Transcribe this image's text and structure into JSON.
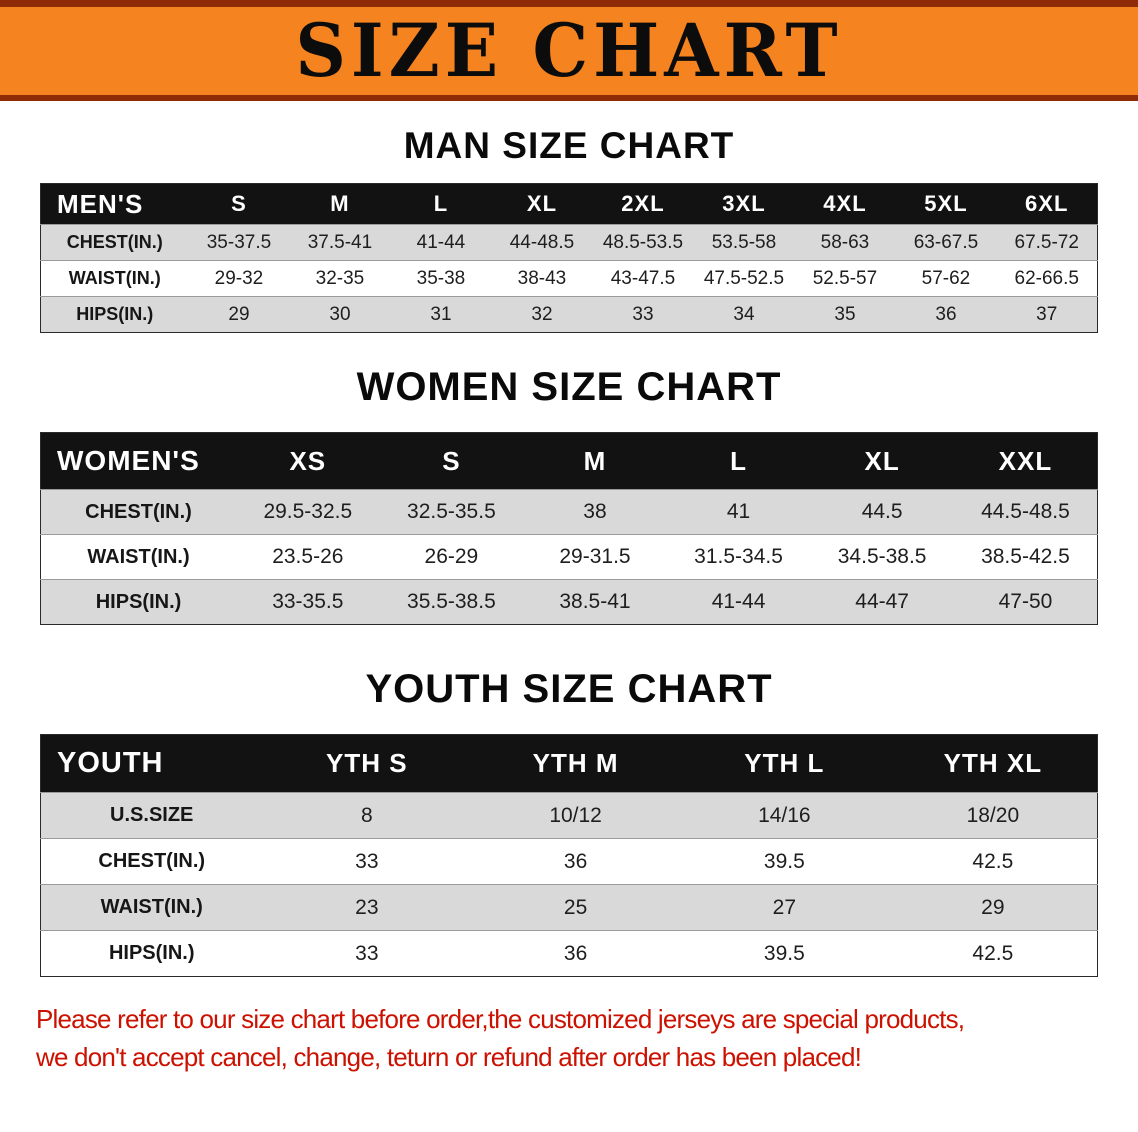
{
  "banner": {
    "title": "SIZE CHART"
  },
  "sections": [
    {
      "heading": "MAN SIZE CHART",
      "table": {
        "header": [
          "MEN'S",
          "S",
          "M",
          "L",
          "XL",
          "2XL",
          "3XL",
          "4XL",
          "5XL",
          "6XL"
        ],
        "rows": [
          [
            "CHEST(IN.)",
            "35-37.5",
            "37.5-41",
            "41-44",
            "44-48.5",
            "48.5-53.5",
            "53.5-58",
            "58-63",
            "63-67.5",
            "67.5-72"
          ],
          [
            "WAIST(IN.)",
            "29-32",
            "32-35",
            "35-38",
            "38-43",
            "43-47.5",
            "47.5-52.5",
            "52.5-57",
            "57-62",
            "62-66.5"
          ],
          [
            "HIPS(IN.)",
            "29",
            "30",
            "31",
            "32",
            "33",
            "34",
            "35",
            "36",
            "37"
          ]
        ]
      }
    },
    {
      "heading": "WOMEN SIZE CHART",
      "table": {
        "header": [
          "WOMEN'S",
          "XS",
          "S",
          "M",
          "L",
          "XL",
          "XXL"
        ],
        "rows": [
          [
            "CHEST(IN.)",
            "29.5-32.5",
            "32.5-35.5",
            "38",
            "41",
            "44.5",
            "44.5-48.5"
          ],
          [
            "WAIST(IN.)",
            "23.5-26",
            "26-29",
            "29-31.5",
            "31.5-34.5",
            "34.5-38.5",
            "38.5-42.5"
          ],
          [
            "HIPS(IN.)",
            "33-35.5",
            "35.5-38.5",
            "38.5-41",
            "41-44",
            "44-47",
            "47-50"
          ]
        ]
      }
    },
    {
      "heading": "YOUTH SIZE CHART",
      "table": {
        "header": [
          "YOUTH",
          "YTH S",
          "YTH M",
          "YTH L",
          "YTH XL"
        ],
        "rows": [
          [
            "U.S.SIZE",
            "8",
            "10/12",
            "14/16",
            "18/20"
          ],
          [
            "CHEST(IN.)",
            "33",
            "36",
            "39.5",
            "42.5"
          ],
          [
            "WAIST(IN.)",
            "23",
            "25",
            "27",
            "29"
          ],
          [
            "HIPS(IN.)",
            "33",
            "36",
            "39.5",
            "42.5"
          ]
        ]
      }
    }
  ],
  "footer": {
    "line1": "Please refer to our size chart before order,the customized jerseys are special products,",
    "line2": "we don't accept cancel, change, teturn or refund after order has been placed!"
  },
  "colors": {
    "banner_bg": "#F5831F",
    "banner_border": "#8F2B06",
    "table_header_bg": "#121212",
    "row_alt_bg": "#D9D9D9",
    "disclaimer_text": "#CC1100"
  }
}
